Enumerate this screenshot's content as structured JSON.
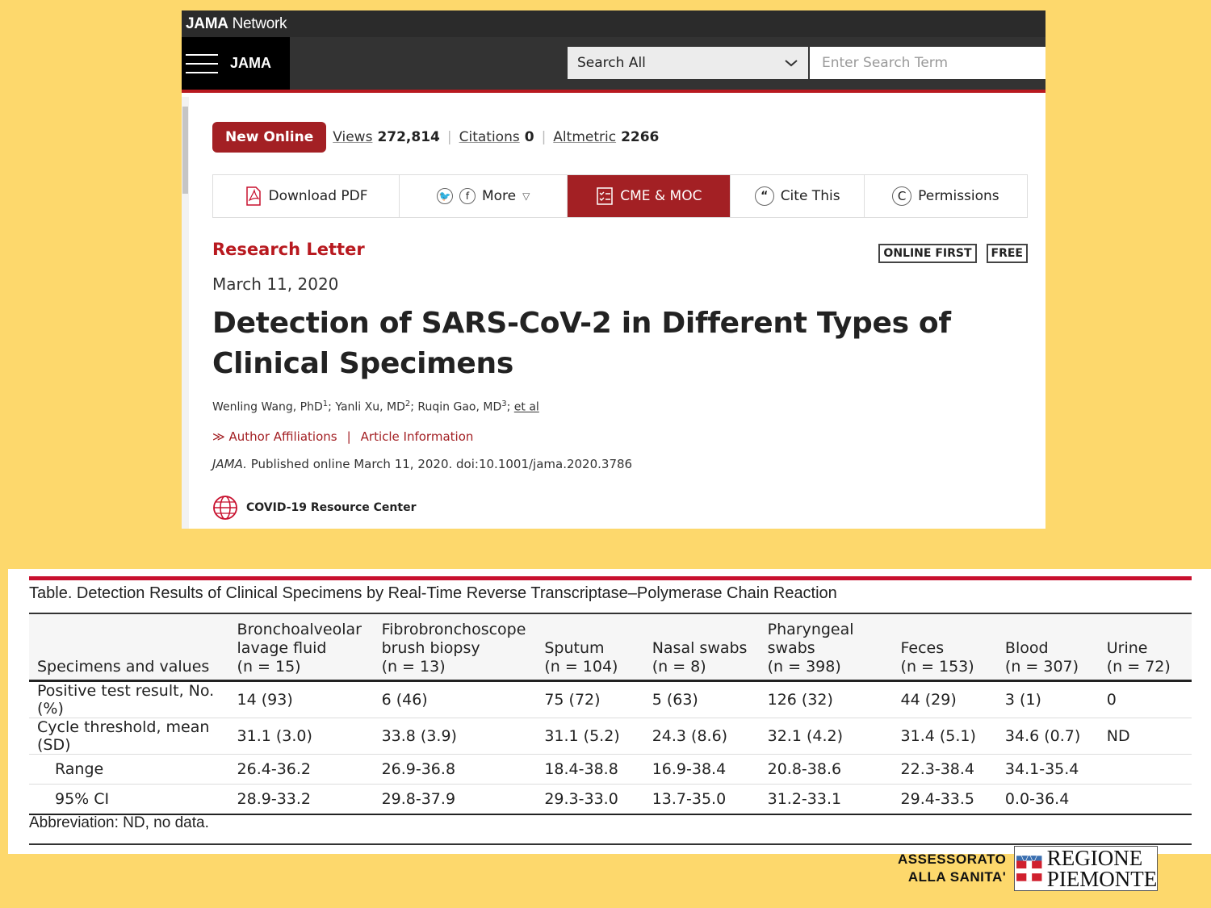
{
  "jama": {
    "network_brand_bold": "JAMA",
    "network_brand_rest": " Network",
    "logo": "JAMA",
    "search": {
      "scope": "Search All",
      "placeholder": "Enter Search Term"
    },
    "badge": "New Online",
    "metrics": [
      {
        "label": "Views",
        "value": "272,814"
      },
      {
        "label": "Citations",
        "value": "0"
      },
      {
        "label": "Altmetric",
        "value": "2266"
      }
    ],
    "toolbar": {
      "download": "Download PDF",
      "more": "More",
      "cme": "CME & MOC",
      "cite": "Cite This",
      "permissions": "Permissions"
    },
    "article_type": "Research Letter",
    "tags": [
      "ONLINE FIRST",
      "FREE"
    ],
    "date": "March 11, 2020",
    "title": "Detection of SARS-CoV-2 in Different Types of Clinical Specimens",
    "authors": {
      "a1": "Wenling Wang, PhD",
      "a1_sup": "1",
      "a2": "; Yanli Xu, MD",
      "a2_sup": "2",
      "a3": "; Ruqin Gao, MD",
      "a3_sup": "3",
      "etal": "et al"
    },
    "links": {
      "affiliations": "Author Affiliations",
      "divider": "|",
      "info": "Article Information"
    },
    "citation": {
      "journal": "JAMA.",
      "rest": " Published online March 11, 2020. doi:10.1001/jama.2020.3786"
    },
    "covid": "COVID-19 Resource Center"
  },
  "table": {
    "caption_prefix": "Table.",
    "caption": " Detection Results of Clinical Specimens by Real-Time Reverse Transcriptase–Polymerase Chain Reaction",
    "header_first": "Specimens and values",
    "columns": [
      [
        "Bronchoalveolar",
        "lavage fluid",
        "(n = 15)"
      ],
      [
        "Fibrobronchoscope",
        "brush biopsy",
        "(n = 13)"
      ],
      [
        "Sputum",
        "(n = 104)"
      ],
      [
        "Nasal swabs",
        "(n = 8)"
      ],
      [
        "Pharyngeal",
        "swabs",
        "(n = 398)"
      ],
      [
        "Feces",
        "(n = 153)"
      ],
      [
        "Blood",
        "(n = 307)"
      ],
      [
        "Urine",
        "(n = 72)"
      ]
    ],
    "rows": [
      {
        "label": "Positive test result, No. (%)",
        "indent": false,
        "values": [
          "14 (93)",
          "6 (46)",
          "75 (72)",
          "5 (63)",
          "126 (32)",
          "44 (29)",
          "3 (1)",
          "0"
        ]
      },
      {
        "label": "Cycle threshold, mean (SD)",
        "indent": false,
        "values": [
          "31.1 (3.0)",
          "33.8 (3.9)",
          "31.1 (5.2)",
          "24.3 (8.6)",
          "32.1 (4.2)",
          "31.4 (5.1)",
          "34.6 (0.7)",
          "ND"
        ]
      },
      {
        "label": "Range",
        "indent": true,
        "values": [
          "26.4-36.2",
          "26.9-36.8",
          "18.4-38.8",
          "16.9-38.4",
          "20.8-38.6",
          "22.3-38.4",
          "34.1-35.4",
          ""
        ]
      },
      {
        "label": "95% CI",
        "indent": true,
        "values": [
          "28.9-33.2",
          "29.8-37.9",
          "29.3-33.0",
          "13.7-35.0",
          "31.2-33.1",
          "29.4-33.5",
          "0.0-36.4",
          ""
        ]
      }
    ],
    "footnote": "Abbreviation: ND, no data."
  },
  "logo": {
    "line1": "ASSESSORATO",
    "line2": "ALLA SANITA'",
    "region1": "REGIONE",
    "region2": "PIEMONTE"
  },
  "colors": {
    "background": "#fdd86c",
    "jama_red": "#a32024",
    "table_rule": "#c8102e"
  }
}
